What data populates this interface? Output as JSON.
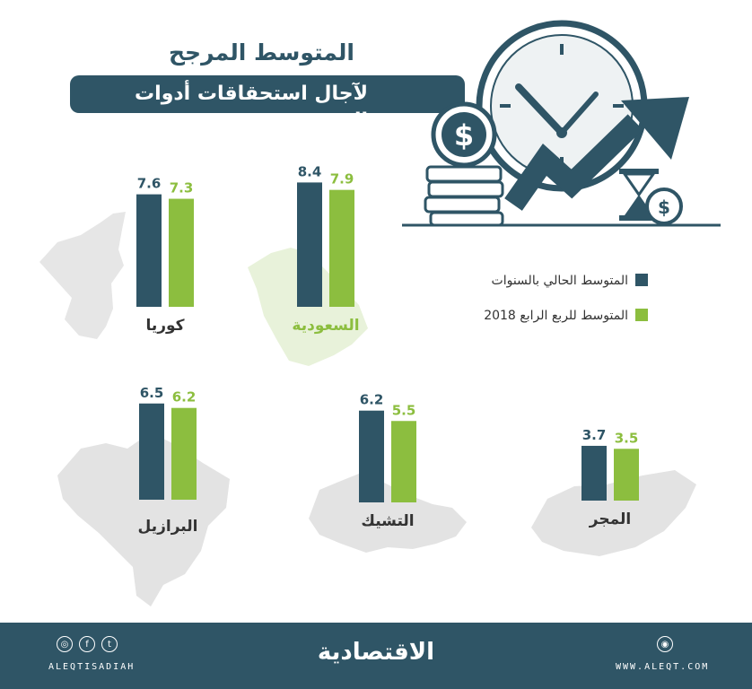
{
  "header": {
    "title_line1": "المتوسط المرجح",
    "title_line2": "لآجال استحقاقات أدوات الدين"
  },
  "legend": {
    "series1": "المتوسط الحالي بالسنوات",
    "series2": "المتوسط للربع الرابع 2018",
    "series1_color": "#2f5566",
    "series2_color": "#8cbe3f"
  },
  "chart_data": [
    {
      "type": "bar",
      "country": "كوريا",
      "categories": [
        "المتوسط الحالي بالسنوات",
        "المتوسط للربع الرابع 2018"
      ],
      "values": [
        7.6,
        7.3
      ],
      "labels": [
        "7.6",
        "7.3"
      ]
    },
    {
      "type": "bar",
      "country": "السعودية",
      "categories": [
        "المتوسط الحالي بالسنوات",
        "المتوسط للربع الرابع 2018"
      ],
      "values": [
        8.4,
        7.9
      ],
      "labels": [
        "8.4",
        "7.9"
      ]
    },
    {
      "type": "bar",
      "country": "البرازيل",
      "categories": [
        "المتوسط الحالي بالسنوات",
        "المتوسط للربع الرابع 2018"
      ],
      "values": [
        6.5,
        6.2
      ],
      "labels": [
        "6.5",
        "6.2"
      ]
    },
    {
      "type": "bar",
      "country": "التشيك",
      "categories": [
        "المتوسط الحالي بالسنوات",
        "المتوسط للربع الرابع 2018"
      ],
      "values": [
        6.2,
        5.5
      ],
      "labels": [
        "6.2",
        "5.5"
      ]
    },
    {
      "type": "bar",
      "country": "المجر",
      "categories": [
        "المتوسط الحالي بالسنوات",
        "المتوسط للربع الرابع 2018"
      ],
      "values": [
        3.7,
        3.5
      ],
      "labels": [
        "3.7",
        "3.5"
      ]
    }
  ],
  "footer": {
    "brand": "الاقتصادية",
    "social_handle": "ALEQTISADIAH",
    "website": "WWW.ALEQT.COM",
    "icons": [
      "instagram-icon",
      "facebook-icon",
      "twitter-icon",
      "globe-icon"
    ]
  }
}
